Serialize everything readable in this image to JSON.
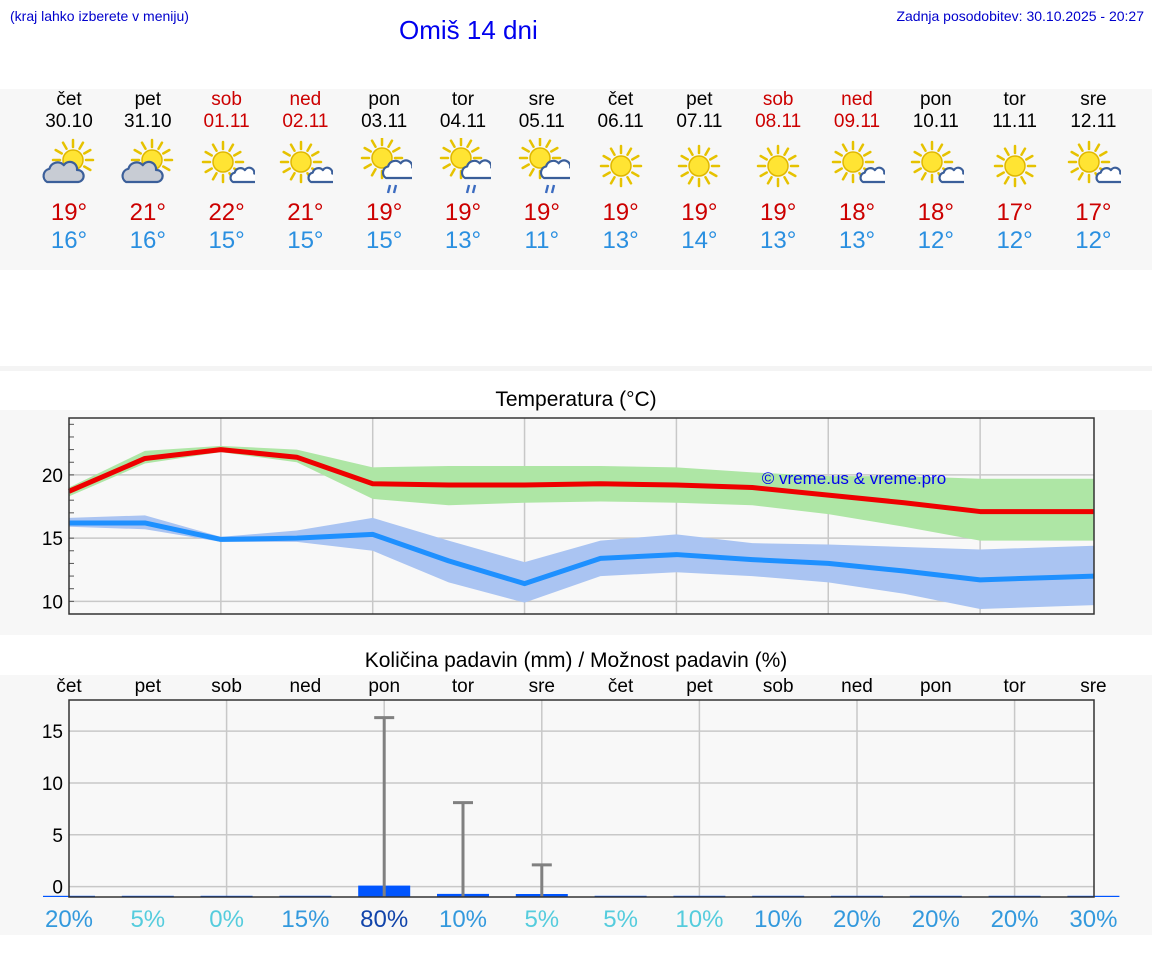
{
  "header": {
    "hint": "(kraj lahko izberete v meniju)",
    "title": "Omiš 14 dni",
    "updated": "Zadnja posodobitev: 30.10.2025 - 20:27"
  },
  "days": [
    {
      "name": "čet",
      "date": "30.10",
      "max": "19°",
      "min": "16°",
      "icon": "partly-cloudy-icon",
      "weekend": false
    },
    {
      "name": "pet",
      "date": "31.10",
      "max": "21°",
      "min": "16°",
      "icon": "partly-cloudy-icon",
      "weekend": false
    },
    {
      "name": "sob",
      "date": "01.11",
      "max": "22°",
      "min": "15°",
      "icon": "mostly-sunny-icon",
      "weekend": true
    },
    {
      "name": "ned",
      "date": "02.11",
      "max": "21°",
      "min": "15°",
      "icon": "mostly-sunny-icon",
      "weekend": true
    },
    {
      "name": "pon",
      "date": "03.11",
      "max": "19°",
      "min": "15°",
      "icon": "rain-icon",
      "weekend": false
    },
    {
      "name": "tor",
      "date": "04.11",
      "max": "19°",
      "min": "13°",
      "icon": "rain-icon",
      "weekend": false
    },
    {
      "name": "sre",
      "date": "05.11",
      "max": "19°",
      "min": "11°",
      "icon": "rain-icon",
      "weekend": false
    },
    {
      "name": "čet",
      "date": "06.11",
      "max": "19°",
      "min": "13°",
      "icon": "sunny-icon",
      "weekend": false
    },
    {
      "name": "pet",
      "date": "07.11",
      "max": "19°",
      "min": "14°",
      "icon": "sunny-icon",
      "weekend": false
    },
    {
      "name": "sob",
      "date": "08.11",
      "max": "19°",
      "min": "13°",
      "icon": "sunny-icon",
      "weekend": true
    },
    {
      "name": "ned",
      "date": "09.11",
      "max": "18°",
      "min": "13°",
      "icon": "mostly-sunny-icon",
      "weekend": true
    },
    {
      "name": "pon",
      "date": "10.11",
      "max": "18°",
      "min": "12°",
      "icon": "mostly-sunny-icon",
      "weekend": false
    },
    {
      "name": "tor",
      "date": "11.11",
      "max": "17°",
      "min": "12°",
      "icon": "sunny-icon",
      "weekend": false
    },
    {
      "name": "sre",
      "date": "12.11",
      "max": "17°",
      "min": "12°",
      "icon": "mostly-sunny-icon",
      "weekend": false
    }
  ],
  "colors": {
    "max_line": "#ee0000",
    "max_band": "#aee6a5",
    "min_line": "#1e90ff",
    "min_band": "#aac4f2",
    "bar": "#0055ff",
    "whisker": "#808080",
    "weekend": "#cc0000",
    "title_blue": "#0000ee"
  },
  "chart_data": [
    {
      "type": "line",
      "title": "Temperatura (°C)",
      "watermark": "© vreme.us & vreme.pro",
      "ylim": [
        9,
        24.5
      ],
      "yticks": [
        10,
        15,
        20
      ],
      "xlim": [
        0,
        13.5
      ],
      "x": [
        0,
        1,
        2,
        3,
        4,
        5,
        6,
        7,
        8,
        9,
        10,
        11,
        12,
        13,
        13.5
      ],
      "series": [
        {
          "name": "max",
          "values": [
            18.7,
            21.3,
            22.0,
            21.4,
            19.3,
            19.2,
            19.2,
            19.3,
            19.2,
            19.0,
            18.4,
            17.8,
            17.1,
            17.1,
            17.1
          ],
          "band_low": [
            18.3,
            20.9,
            21.8,
            21.0,
            18.1,
            17.6,
            17.8,
            17.9,
            17.8,
            17.6,
            16.9,
            15.9,
            14.8,
            14.8,
            14.8
          ],
          "band_high": [
            19.0,
            21.9,
            22.3,
            22.0,
            20.6,
            20.7,
            20.7,
            20.7,
            20.6,
            20.2,
            19.9,
            19.9,
            19.7,
            19.7,
            19.7
          ]
        },
        {
          "name": "min",
          "values": [
            16.2,
            16.2,
            14.9,
            15.0,
            15.3,
            13.2,
            11.4,
            13.4,
            13.7,
            13.3,
            13.0,
            12.4,
            11.7,
            11.9,
            12.0
          ],
          "band_low": [
            15.9,
            15.7,
            14.7,
            14.7,
            14.0,
            11.5,
            9.9,
            12.0,
            12.3,
            12.0,
            11.5,
            10.6,
            9.4,
            9.6,
            9.7
          ],
          "band_high": [
            16.6,
            16.8,
            15.1,
            15.6,
            16.6,
            14.8,
            13.1,
            14.8,
            15.3,
            14.6,
            14.5,
            14.3,
            14.1,
            14.3,
            14.4
          ]
        }
      ]
    },
    {
      "type": "bar",
      "title": "Količina padavin (mm) / Možnost padavin (%)",
      "categories": [
        "čet",
        "pet",
        "sob",
        "ned",
        "pon",
        "tor",
        "sre",
        "čet",
        "pet",
        "sob",
        "ned",
        "pon",
        "tor",
        "sre"
      ],
      "ylim": [
        -1,
        18
      ],
      "yticks": [
        0,
        5,
        10,
        15
      ],
      "values": [
        0,
        0,
        0,
        0,
        1.1,
        0.3,
        0.1,
        0,
        0,
        0,
        0,
        0,
        0,
        0
      ],
      "max_values": [
        0,
        0,
        0,
        0,
        16.3,
        8.1,
        2.1,
        0,
        0,
        0,
        0,
        0,
        0,
        0
      ],
      "probability": [
        "20%",
        "5%",
        "0%",
        "15%",
        "80%",
        "10%",
        "5%",
        "5%",
        "10%",
        "10%",
        "20%",
        "20%",
        "20%",
        "30%"
      ],
      "probability_colors": [
        "#3399dd",
        "#55ccdd",
        "#55ccdd",
        "#3399dd",
        "#1144aa",
        "#3399dd",
        "#55ccdd",
        "#55ccdd",
        "#55ccdd",
        "#3399dd",
        "#3399dd",
        "#3399dd",
        "#3399dd",
        "#3399dd"
      ]
    }
  ]
}
